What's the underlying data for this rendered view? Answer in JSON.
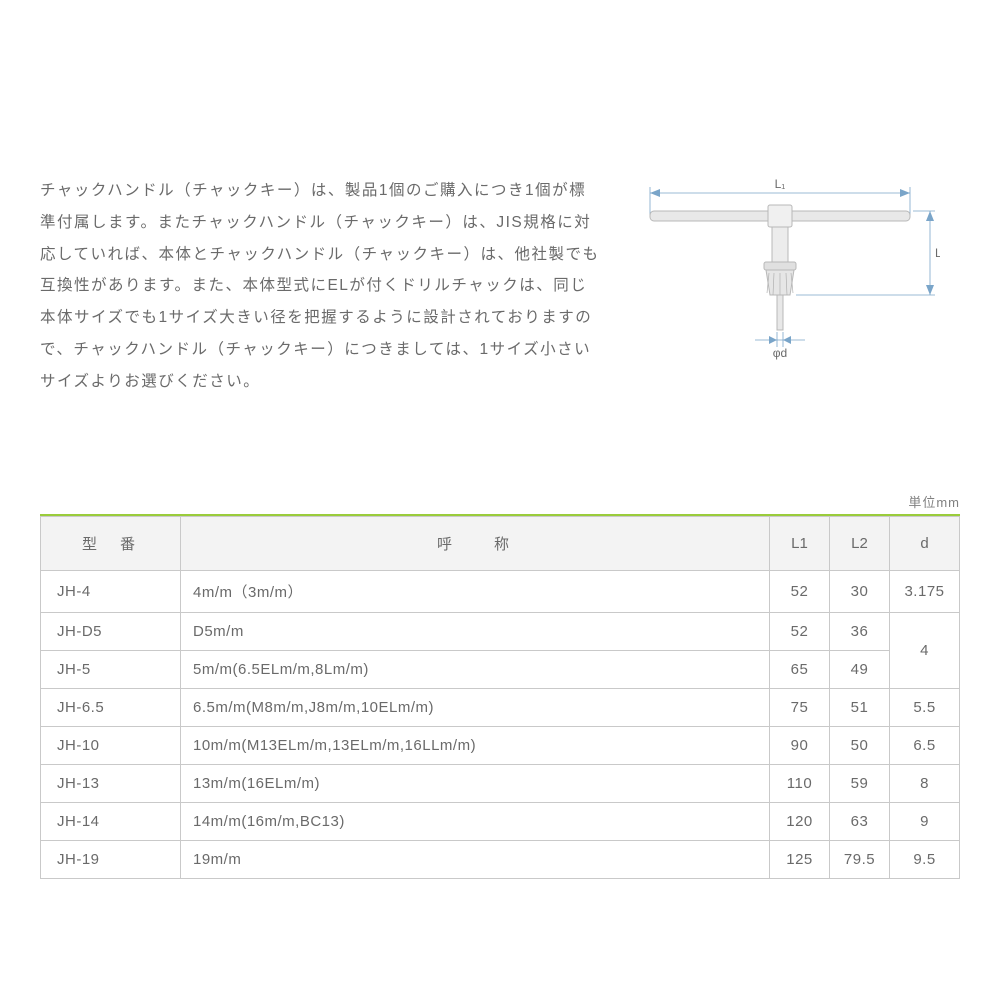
{
  "description": "チャックハンドル（チャックキー）は、製品1個のご購入につき1個が標準付属します。またチャックハンドル（チャックキー）は、JIS規格に対応していれば、本体とチャックハンドル（チャックキー）は、他社製でも互換性があります。また、本体型式にELが付くドリルチャックは、同じ本体サイズでも1サイズ大きい径を把握するように設計されておりますので、チャックハンドル（チャックキー）につきましては、1サイズ小さいサイズよりお選びください。",
  "unit_label": "単位mm",
  "diagram": {
    "labels": {
      "L1": "L₁",
      "L2": "L₂",
      "d": "φd"
    },
    "colors": {
      "dimension_line": "#7aa5c9",
      "part_fill": "#e8e8e8",
      "part_stroke": "#b8b8b8",
      "text": "#6a6a6a"
    }
  },
  "table": {
    "accent_color": "#9acc3b",
    "header_bg": "#f3f3f3",
    "border_color": "#c9c9c9",
    "text_color": "#6a6a6a",
    "columns": [
      "型　番",
      "呼　　称",
      "L1",
      "L2",
      "d"
    ],
    "rows": [
      {
        "model": "JH-4",
        "name": "4m/m（3m/m）",
        "L1": "52",
        "L2": "30",
        "d": "3.175"
      },
      {
        "model": "JH-D5",
        "name": "D5m/m",
        "L1": "52",
        "L2": "36",
        "d": "4",
        "d_rowspan": 2
      },
      {
        "model": "JH-5",
        "name": "5m/m(6.5ELm/m,8Lm/m)",
        "L1": "65",
        "L2": "49"
      },
      {
        "model": "JH-6.5",
        "name": "6.5m/m(M8m/m,J8m/m,10ELm/m)",
        "L1": "75",
        "L2": "51",
        "d": "5.5"
      },
      {
        "model": "JH-10",
        "name": "10m/m(M13ELm/m,13ELm/m,16LLm/m)",
        "L1": "90",
        "L2": "50",
        "d": "6.5"
      },
      {
        "model": "JH-13",
        "name": "13m/m(16ELm/m)",
        "L1": "110",
        "L2": "59",
        "d": "8"
      },
      {
        "model": "JH-14",
        "name": "14m/m(16m/m,BC13)",
        "L1": "120",
        "L2": "63",
        "d": "9"
      },
      {
        "model": "JH-19",
        "name": "19m/m",
        "L1": "125",
        "L2": "79.5",
        "d": "9.5"
      }
    ]
  }
}
